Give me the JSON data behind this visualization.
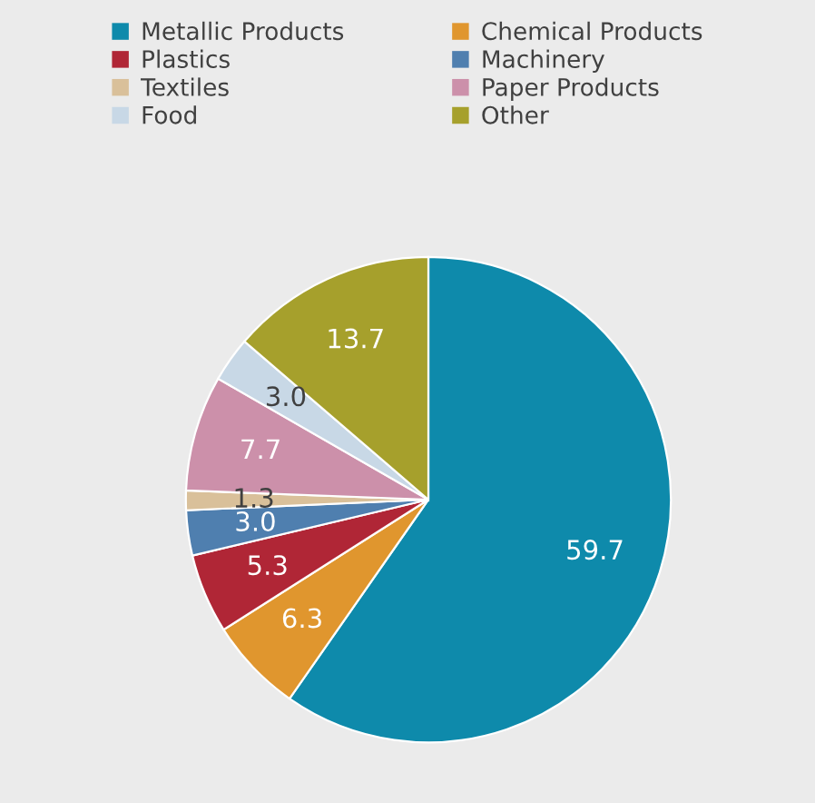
{
  "chart_data": {
    "type": "pie",
    "categories": [
      "Metallic Products",
      "Chemical Products",
      "Plastics",
      "Machinery",
      "Textiles",
      "Paper Products",
      "Food",
      "Other"
    ],
    "values": [
      59.7,
      6.3,
      5.3,
      3.0,
      1.3,
      7.7,
      3.0,
      13.7
    ],
    "colors": [
      "#0e8aab",
      "#e0962e",
      "#b02636",
      "#4f7faf",
      "#d9c09a",
      "#cc90aa",
      "#c8d8e6",
      "#a6a02c"
    ],
    "value_labels": [
      "59.7",
      "6.3",
      "5.3",
      "3.0",
      "1.3",
      "7.7",
      "3.0",
      "13.7"
    ],
    "legend": "top"
  }
}
